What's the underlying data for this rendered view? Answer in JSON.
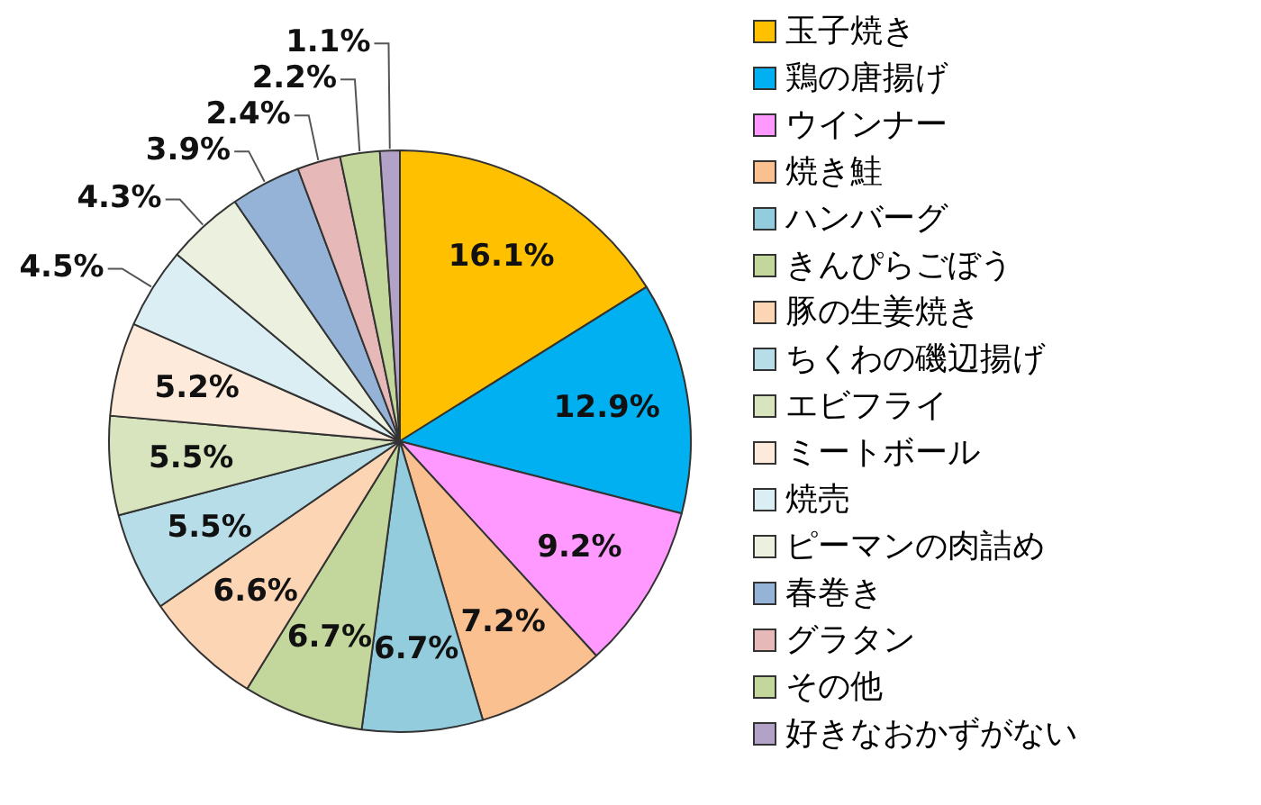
{
  "chart_data": {
    "type": "pie",
    "categories": [
      "玉子焼き",
      "鶏の唐揚げ",
      "ウインナー",
      "焼き鮭",
      "ハンバーグ",
      "きんぴらごぼう",
      "豚の生姜焼き",
      "ちくわの磯辺揚げ",
      "エビフライ",
      "ミートボール",
      "焼売",
      "ピーマンの肉詰め",
      "春巻き",
      "グラタン",
      "その他",
      "好きなおかずがない"
    ],
    "values": [
      16.1,
      12.9,
      9.2,
      7.2,
      6.7,
      6.7,
      6.6,
      5.5,
      5.5,
      5.2,
      4.5,
      4.3,
      3.9,
      2.4,
      2.2,
      1.1
    ],
    "value_labels": [
      "16.1%",
      "12.9%",
      "9.2%",
      "7.2%",
      "6.7%",
      "6.7%",
      "6.6%",
      "5.5%",
      "5.5%",
      "5.2%",
      "4.5%",
      "4.3%",
      "3.9%",
      "2.4%",
      "2.2%",
      "1.1%"
    ],
    "colors": [
      "#ffc000",
      "#00b0f0",
      "#ff99ff",
      "#fac090",
      "#93cddd",
      "#c3d69b",
      "#fcd5b5",
      "#b7dee8",
      "#d7e4bd",
      "#fdeada",
      "#dbeef4",
      "#ebf1de",
      "#95b3d7",
      "#e6b9b8",
      "#c3d69b",
      "#b3a2c7"
    ],
    "legend": "right"
  }
}
